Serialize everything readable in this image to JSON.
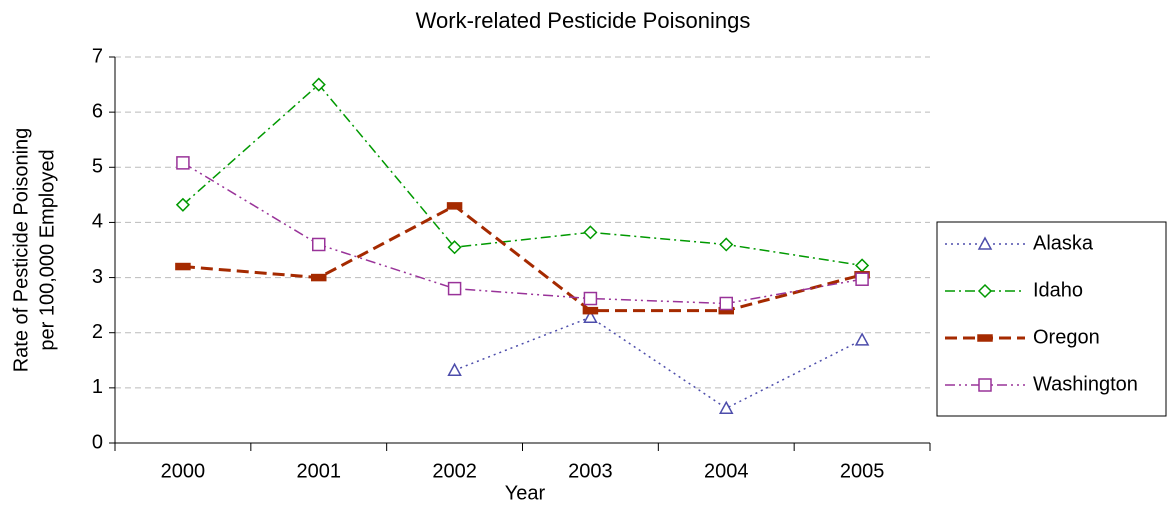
{
  "chart_data": {
    "type": "line",
    "title": "Work-related Pesticide Poisonings",
    "x_label": "Year",
    "y_label": [
      "Rate of Pesticide Poisoning",
      "per 100,000 Employed"
    ],
    "categories": [
      "2000",
      "2001",
      "2002",
      "2003",
      "2004",
      "2005"
    ],
    "ylim": [
      0,
      7
    ],
    "yticks": [
      0,
      1,
      2,
      3,
      4,
      5,
      6,
      7
    ],
    "grid": true,
    "legend": "right",
    "series": [
      {
        "name": "Alaska",
        "color": "#4d4dab",
        "line_style": "dotted",
        "marker": "triangle",
        "values": [
          null,
          null,
          1.32,
          2.28,
          0.63,
          1.87
        ]
      },
      {
        "name": "Idaho",
        "color": "#009900",
        "line_style": "dashdot",
        "marker": "diamond",
        "values": [
          4.32,
          6.5,
          3.55,
          3.82,
          3.6,
          3.22
        ]
      },
      {
        "name": "Oregon",
        "color": "#a52a00",
        "line_style": "dashed",
        "marker": "bar",
        "values": [
          3.2,
          3.0,
          4.3,
          2.4,
          2.4,
          3.05
        ]
      },
      {
        "name": "Washington",
        "color": "#993399",
        "line_style": "dashdotdot",
        "marker": "square",
        "values": [
          5.08,
          3.6,
          2.8,
          2.62,
          2.53,
          2.97
        ]
      }
    ]
  }
}
